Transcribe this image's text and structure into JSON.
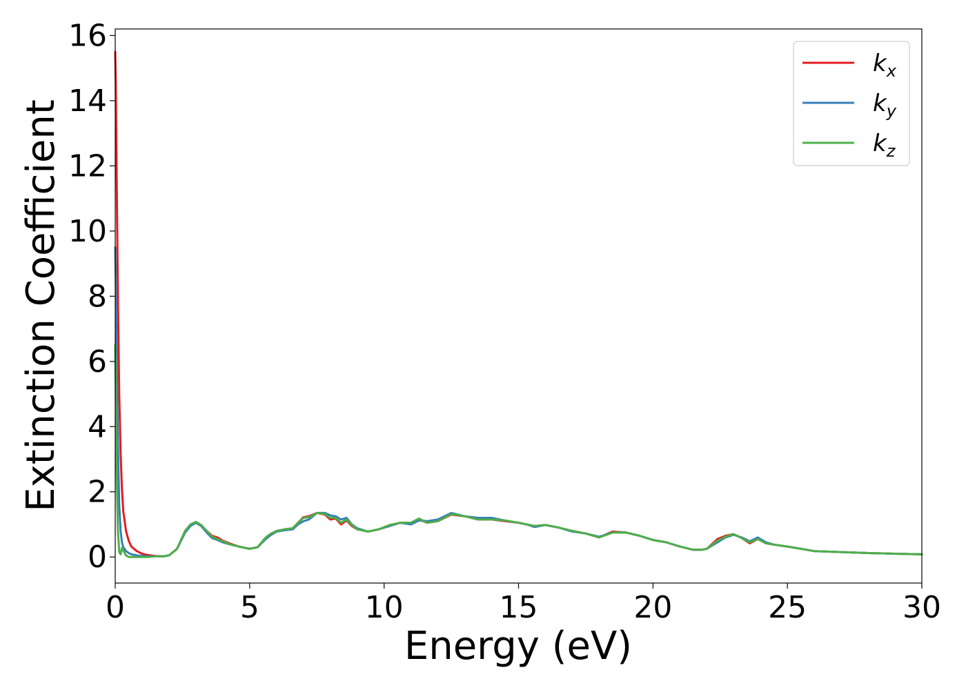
{
  "chart_data": {
    "type": "line",
    "title": "",
    "xlabel": "Energy (eV)",
    "ylabel": "Extinction Coefficient",
    "xlim": [
      0,
      30
    ],
    "ylim": [
      -0.8,
      16.2
    ],
    "xticks": [
      "0",
      "5",
      "10",
      "15",
      "20",
      "25",
      "30"
    ],
    "yticks": [
      "0",
      "2",
      "4",
      "6",
      "8",
      "10",
      "12",
      "14",
      "16"
    ],
    "xtick_values": [
      0,
      5,
      10,
      15,
      20,
      25,
      30
    ],
    "ytick_values": [
      0,
      2,
      4,
      6,
      8,
      10,
      12,
      14,
      16
    ],
    "grid": false,
    "legend_position": "top-right",
    "series": [
      {
        "name": "k",
        "subscript": "x",
        "color": "#e41a1c",
        "x": [
          0.0,
          0.02,
          0.05,
          0.1,
          0.15,
          0.2,
          0.25,
          0.3,
          0.4,
          0.5,
          0.6,
          0.8,
          1.0,
          1.2,
          1.5,
          1.8,
          2.0,
          2.3,
          2.6,
          2.8,
          3.0,
          3.2,
          3.4,
          3.6,
          3.8,
          4.0,
          4.3,
          4.6,
          5.0,
          5.3,
          5.6,
          5.8,
          6.0,
          6.3,
          6.6,
          6.8,
          7.0,
          7.2,
          7.5,
          7.8,
          8.0,
          8.2,
          8.4,
          8.6,
          8.8,
          9.0,
          9.4,
          9.8,
          10.2,
          10.6,
          11.0,
          11.3,
          11.6,
          12.0,
          12.5,
          13.0,
          13.5,
          14.0,
          14.5,
          15.0,
          15.3,
          15.6,
          16.0,
          16.5,
          17.0,
          17.5,
          18.0,
          18.5,
          19.0,
          19.5,
          20.0,
          20.5,
          21.0,
          21.5,
          21.8,
          22.0,
          22.4,
          22.7,
          23.0,
          23.3,
          23.6,
          23.9,
          24.2,
          24.5,
          25.0,
          25.5,
          26.0,
          27.0,
          28.0,
          29.0,
          30.0
        ],
        "values": [
          15.5,
          14.5,
          12.0,
          8.0,
          5.0,
          3.2,
          2.1,
          1.4,
          0.8,
          0.5,
          0.32,
          0.18,
          0.1,
          0.06,
          0.03,
          0.02,
          0.05,
          0.25,
          0.8,
          1.0,
          1.05,
          0.95,
          0.8,
          0.65,
          0.6,
          0.5,
          0.4,
          0.32,
          0.25,
          0.3,
          0.6,
          0.72,
          0.78,
          0.85,
          0.88,
          1.05,
          1.22,
          1.25,
          1.35,
          1.3,
          1.15,
          1.18,
          1.0,
          1.12,
          0.95,
          0.85,
          0.78,
          0.85,
          0.95,
          1.05,
          1.05,
          1.15,
          1.05,
          1.1,
          1.3,
          1.25,
          1.15,
          1.15,
          1.1,
          1.05,
          1.0,
          0.95,
          0.98,
          0.9,
          0.8,
          0.72,
          0.6,
          0.78,
          0.75,
          0.65,
          0.52,
          0.45,
          0.32,
          0.22,
          0.22,
          0.25,
          0.55,
          0.65,
          0.7,
          0.58,
          0.42,
          0.55,
          0.42,
          0.38,
          0.32,
          0.25,
          0.18,
          0.15,
          0.12,
          0.1,
          0.08
        ]
      },
      {
        "name": "k",
        "subscript": "y",
        "color": "#377eb8",
        "x": [
          0.0,
          0.02,
          0.05,
          0.1,
          0.15,
          0.2,
          0.25,
          0.3,
          0.4,
          0.5,
          0.6,
          0.8,
          1.0,
          1.2,
          1.5,
          1.8,
          2.0,
          2.3,
          2.6,
          2.8,
          3.0,
          3.2,
          3.4,
          3.6,
          3.8,
          4.0,
          4.3,
          4.6,
          5.0,
          5.3,
          5.6,
          5.8,
          6.0,
          6.3,
          6.6,
          6.8,
          7.0,
          7.2,
          7.5,
          7.8,
          8.0,
          8.2,
          8.4,
          8.6,
          8.8,
          9.0,
          9.4,
          9.8,
          10.2,
          10.6,
          11.0,
          11.3,
          11.6,
          12.0,
          12.5,
          13.0,
          13.5,
          14.0,
          14.5,
          15.0,
          15.3,
          15.6,
          16.0,
          16.5,
          17.0,
          17.5,
          18.0,
          18.5,
          19.0,
          19.5,
          20.0,
          20.5,
          21.0,
          21.5,
          21.8,
          22.0,
          22.4,
          22.7,
          23.0,
          23.3,
          23.6,
          23.9,
          24.2,
          24.5,
          25.0,
          25.5,
          26.0,
          27.0,
          28.0,
          29.0,
          30.0
        ],
        "values": [
          9.5,
          8.5,
          6.5,
          3.5,
          1.6,
          0.8,
          0.45,
          0.3,
          0.18,
          0.12,
          0.08,
          0.05,
          0.03,
          0.02,
          0.02,
          0.02,
          0.05,
          0.25,
          0.75,
          0.95,
          1.05,
          0.95,
          0.75,
          0.58,
          0.52,
          0.45,
          0.38,
          0.32,
          0.25,
          0.3,
          0.55,
          0.68,
          0.78,
          0.82,
          0.85,
          1.0,
          1.1,
          1.15,
          1.35,
          1.35,
          1.28,
          1.25,
          1.15,
          1.2,
          1.0,
          0.88,
          0.78,
          0.85,
          0.95,
          1.05,
          1.0,
          1.12,
          1.1,
          1.15,
          1.35,
          1.25,
          1.2,
          1.2,
          1.12,
          1.05,
          1.0,
          0.92,
          0.98,
          0.9,
          0.78,
          0.72,
          0.62,
          0.75,
          0.75,
          0.65,
          0.52,
          0.45,
          0.32,
          0.22,
          0.22,
          0.25,
          0.45,
          0.6,
          0.68,
          0.6,
          0.48,
          0.6,
          0.45,
          0.38,
          0.32,
          0.25,
          0.18,
          0.15,
          0.12,
          0.1,
          0.08
        ]
      },
      {
        "name": "k",
        "subscript": "z",
        "color": "#4daf4a",
        "x": [
          0.0,
          0.02,
          0.05,
          0.1,
          0.15,
          0.2,
          0.25,
          0.3,
          0.4,
          0.5,
          0.6,
          0.8,
          1.0,
          1.2,
          1.5,
          1.8,
          2.0,
          2.3,
          2.6,
          2.8,
          3.0,
          3.2,
          3.4,
          3.6,
          3.8,
          4.0,
          4.3,
          4.6,
          5.0,
          5.3,
          5.6,
          5.8,
          6.0,
          6.3,
          6.6,
          6.8,
          7.0,
          7.2,
          7.5,
          7.8,
          8.0,
          8.2,
          8.4,
          8.6,
          8.8,
          9.0,
          9.4,
          9.8,
          10.2,
          10.6,
          11.0,
          11.3,
          11.6,
          12.0,
          12.5,
          13.0,
          13.5,
          14.0,
          14.5,
          15.0,
          15.3,
          15.6,
          16.0,
          16.5,
          17.0,
          17.5,
          18.0,
          18.5,
          19.0,
          19.5,
          20.0,
          20.5,
          21.0,
          21.5,
          21.8,
          22.0,
          22.4,
          22.7,
          23.0,
          23.3,
          23.6,
          23.9,
          24.2,
          24.5,
          25.0,
          25.5,
          26.0,
          27.0,
          28.0,
          29.0,
          30.0
        ],
        "values": [
          6.5,
          5.0,
          2.8,
          0.8,
          0.15,
          0.08,
          0.28,
          0.2,
          0.05,
          0.0,
          0.0,
          0.0,
          0.0,
          0.0,
          0.02,
          0.02,
          0.05,
          0.25,
          0.8,
          1.0,
          1.08,
          0.98,
          0.8,
          0.62,
          0.55,
          0.48,
          0.38,
          0.32,
          0.25,
          0.3,
          0.6,
          0.72,
          0.8,
          0.85,
          0.88,
          1.05,
          1.2,
          1.22,
          1.35,
          1.32,
          1.2,
          1.2,
          1.05,
          1.15,
          0.98,
          0.85,
          0.78,
          0.85,
          0.98,
          1.05,
          1.05,
          1.18,
          1.05,
          1.1,
          1.32,
          1.25,
          1.15,
          1.15,
          1.12,
          1.05,
          1.0,
          0.95,
          0.98,
          0.9,
          0.8,
          0.72,
          0.6,
          0.75,
          0.75,
          0.65,
          0.52,
          0.45,
          0.32,
          0.22,
          0.22,
          0.25,
          0.5,
          0.62,
          0.7,
          0.58,
          0.45,
          0.55,
          0.42,
          0.38,
          0.32,
          0.25,
          0.18,
          0.15,
          0.12,
          0.1,
          0.08
        ]
      }
    ]
  }
}
